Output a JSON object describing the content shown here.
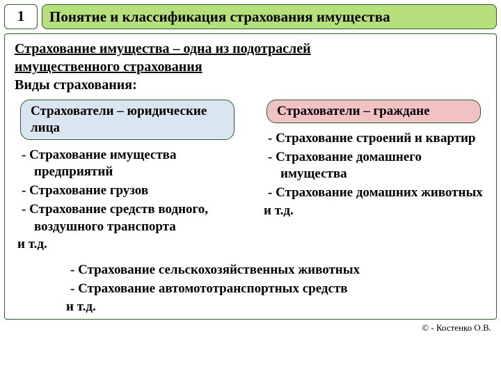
{
  "header": {
    "number": "1",
    "title": "Понятие и классификация страхования имущества"
  },
  "intro": {
    "line1_u": "Страхование имущества – одна из подотраслей",
    "line2_u": "имущественного страхования",
    "line3": "Виды страхования:"
  },
  "left": {
    "pill": "Страхователи – юридические лица",
    "items": [
      "Страхование имущества предприятий",
      "Страхование грузов",
      "Страхование средств водного, воздушного транспорта"
    ],
    "etc": "и т.д."
  },
  "right": {
    "pill": "Страхователи – граждане",
    "items": [
      "Страхование строений и квартир",
      "Страхование домашнего имущества",
      "Страхование домашних животных"
    ],
    "etc": "и т.д."
  },
  "common": {
    "items": [
      "Страхование сельскохозяйственных животных",
      "Страхование автомототранспортных средств"
    ],
    "etc": "и т.д."
  },
  "attribution": "© - Костенко О.В.",
  "colors": {
    "green_fill": "#b6e07c",
    "border": "#2e5c2e",
    "blue_fill": "#d9e6f2",
    "red_fill": "#f2c1c1"
  }
}
